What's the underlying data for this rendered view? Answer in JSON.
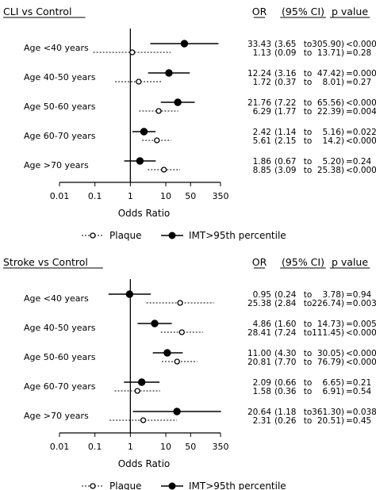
{
  "columns": {
    "or": "OR",
    "ci": "(95% CI)",
    "p": "p value"
  },
  "chart_data": [
    {
      "type": "forest",
      "title": "CLI vs Control",
      "xlabel": "Odds Ratio",
      "xscale": "log",
      "xlim": [
        0.01,
        350
      ],
      "ticks": [
        "0.01",
        "0.1",
        "1",
        "10",
        "50",
        "350"
      ],
      "reference_line": 1,
      "legend": [
        "Plaque",
        "IMT>95th percentile"
      ],
      "categories": [
        "Age <40 years",
        "Age 40-50 years",
        "Age 50-60 years",
        "Age 60-70 years",
        "Age >70 years"
      ],
      "series": [
        {
          "name": "IMT>95th percentile",
          "marker": "filled",
          "line": "solid",
          "rows": [
            {
              "or": 33.43,
              "lo": 3.65,
              "hi": 305.9,
              "or_text": "33.43",
              "lo_text": "(3.65",
              "to": "to",
              "hi_text": "305.90)",
              "p": "<0.0001"
            },
            {
              "or": 12.24,
              "lo": 3.16,
              "hi": 47.42,
              "or_text": "12.24",
              "lo_text": "(3.16",
              "to": "to",
              "hi_text": "47.42)",
              "p": "=0.0003"
            },
            {
              "or": 21.76,
              "lo": 7.22,
              "hi": 65.56,
              "or_text": "21.76",
              "lo_text": "(7.22",
              "to": "to",
              "hi_text": "65.56)",
              "p": "<0.0001"
            },
            {
              "or": 2.42,
              "lo": 1.14,
              "hi": 5.16,
              "or_text": "2.42",
              "lo_text": "(1.14",
              "to": "to",
              "hi_text": "5.16)",
              "p": "=0.022"
            },
            {
              "or": 1.86,
              "lo": 0.67,
              "hi": 5.2,
              "or_text": "1.86",
              "lo_text": "(0.67",
              "to": "to",
              "hi_text": "5.20)",
              "p": "=0.24"
            }
          ]
        },
        {
          "name": "Plaque",
          "marker": "open",
          "line": "dotted",
          "rows": [
            {
              "or": 1.13,
              "lo": 0.09,
              "hi": 13.71,
              "or_text": "1.13",
              "lo_text": "(0.09",
              "to": "to",
              "hi_text": "13.71)",
              "p": "=0.28"
            },
            {
              "or": 1.72,
              "lo": 0.37,
              "hi": 8.01,
              "or_text": "1.72",
              "lo_text": "(0.37",
              "to": "to",
              "hi_text": "8.01)",
              "p": "=0.27"
            },
            {
              "or": 6.29,
              "lo": 1.77,
              "hi": 22.39,
              "or_text": "6.29",
              "lo_text": "(1.77",
              "to": "to",
              "hi_text": "22.39)",
              "p": "=0.0045"
            },
            {
              "or": 5.61,
              "lo": 2.15,
              "hi": 14.2,
              "or_text": "5.61",
              "lo_text": "(2.15",
              "to": "to",
              "hi_text": "14.2)",
              "p": "<0.0001"
            },
            {
              "or": 8.85,
              "lo": 3.09,
              "hi": 25.38,
              "or_text": "8.85",
              "lo_text": "(3.09",
              "to": "to",
              "hi_text": "25.38)",
              "p": "<0.0001"
            }
          ]
        }
      ]
    },
    {
      "type": "forest",
      "title": "Stroke vs Control",
      "xlabel": "Odds Ratio",
      "xscale": "log",
      "xlim": [
        0.01,
        350
      ],
      "ticks": [
        "0.01",
        "0.1",
        "1",
        "10",
        "50",
        "350"
      ],
      "reference_line": 1,
      "legend": [
        "Plaque",
        "IMT>95th percentile"
      ],
      "categories": [
        "Age <40 years",
        "Age 40-50 years",
        "Age 50-60 years",
        "Age 60-70 years",
        "Age >70 years"
      ],
      "series": [
        {
          "name": "IMT>95th percentile",
          "marker": "filled",
          "line": "solid",
          "rows": [
            {
              "or": 0.95,
              "lo": 0.24,
              "hi": 3.78,
              "or_text": "0.95",
              "lo_text": "(0.24",
              "to": "to",
              "hi_text": "3.78)",
              "p": "=0.94"
            },
            {
              "or": 4.86,
              "lo": 1.6,
              "hi": 14.73,
              "or_text": "4.86",
              "lo_text": "(1.60",
              "to": "to",
              "hi_text": "14.73)",
              "p": "=0.0053"
            },
            {
              "or": 11.0,
              "lo": 4.3,
              "hi": 30.05,
              "or_text": "11.00",
              "lo_text": "(4.30",
              "to": "to",
              "hi_text": "30.05)",
              "p": "<0.0001"
            },
            {
              "or": 2.09,
              "lo": 0.66,
              "hi": 6.65,
              "or_text": "2.09",
              "lo_text": "(0.66",
              "to": "to",
              "hi_text": "6.65)",
              "p": "=0.21"
            },
            {
              "or": 20.64,
              "lo": 1.18,
              "hi": 361.3,
              "or_text": "20.64",
              "lo_text": "(1.18",
              "to": "to",
              "hi_text": "361.30)",
              "p": "=0.038"
            }
          ]
        },
        {
          "name": "Plaque",
          "marker": "open",
          "line": "dotted",
          "rows": [
            {
              "or": 25.38,
              "lo": 2.84,
              "hi": 226.74,
              "or_text": "25.38",
              "lo_text": "(2.84",
              "to": "to",
              "hi_text": "226.74)",
              "p": "=0.0038"
            },
            {
              "or": 28.41,
              "lo": 7.24,
              "hi": 111.45,
              "or_text": "28.41",
              "lo_text": "(7.24",
              "to": "to",
              "hi_text": "111.45)",
              "p": "<0.0001"
            },
            {
              "or": 20.81,
              "lo": 7.7,
              "hi": 76.79,
              "or_text": "20.81",
              "lo_text": "(7.70",
              "to": "to",
              "hi_text": "76.79)",
              "p": "<0.0001"
            },
            {
              "or": 1.58,
              "lo": 0.36,
              "hi": 6.91,
              "or_text": "1.58",
              "lo_text": "(0.36",
              "to": "to",
              "hi_text": "6.91)",
              "p": "=0.54"
            },
            {
              "or": 2.31,
              "lo": 0.26,
              "hi": 20.51,
              "or_text": "2.31",
              "lo_text": "(0.26",
              "to": "to",
              "hi_text": "20.51)",
              "p": "=0.45"
            }
          ]
        }
      ]
    }
  ]
}
